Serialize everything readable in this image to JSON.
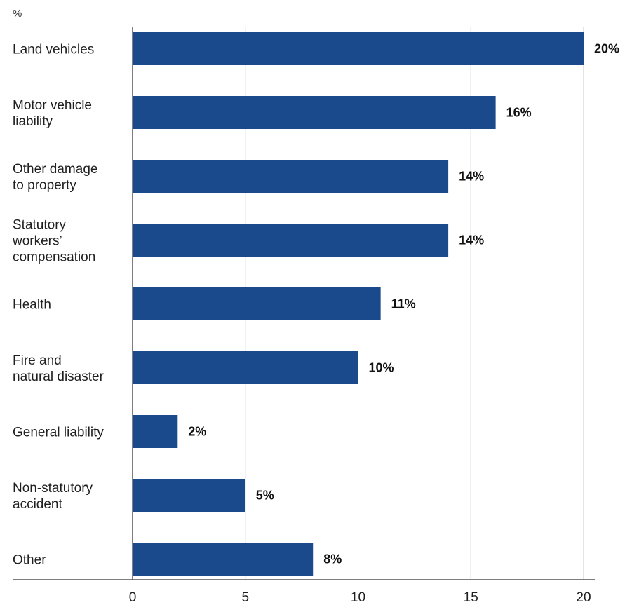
{
  "chart_data": {
    "type": "bar",
    "orientation": "horizontal",
    "unit": "%",
    "categories": [
      "Land vehicles",
      "Motor vehicle liability",
      "Other damage to property",
      "Statutory workers' compensation",
      "Health",
      "Fire and natural disaster",
      "General liability",
      "Non-statutory accident",
      "Other"
    ],
    "category_lines": [
      [
        "Land vehicles"
      ],
      [
        "Motor vehicle",
        "liability"
      ],
      [
        "Other damage",
        "to property"
      ],
      [
        "Statutory",
        "workers’",
        "compensation"
      ],
      [
        "Health"
      ],
      [
        "Fire and",
        "natural disaster"
      ],
      [
        "General liability"
      ],
      [
        "Non-statutory",
        "accident"
      ],
      [
        "Other"
      ]
    ],
    "values": [
      20,
      16.1,
      14,
      14,
      11,
      10,
      2,
      5,
      8
    ],
    "value_labels": [
      "20%",
      "16%",
      "14%",
      "14%",
      "11%",
      "10%",
      "2%",
      "5%",
      "8%"
    ],
    "xlim": [
      0,
      20
    ],
    "xticks": [
      0,
      5,
      10,
      15,
      20
    ],
    "xtick_labels": [
      "0",
      "5",
      "10",
      "15",
      "20"
    ],
    "grid": "vertical",
    "bar_color": "#1a4a8c",
    "grid_color": "#c8c8c8",
    "axis_color": "#555555"
  }
}
